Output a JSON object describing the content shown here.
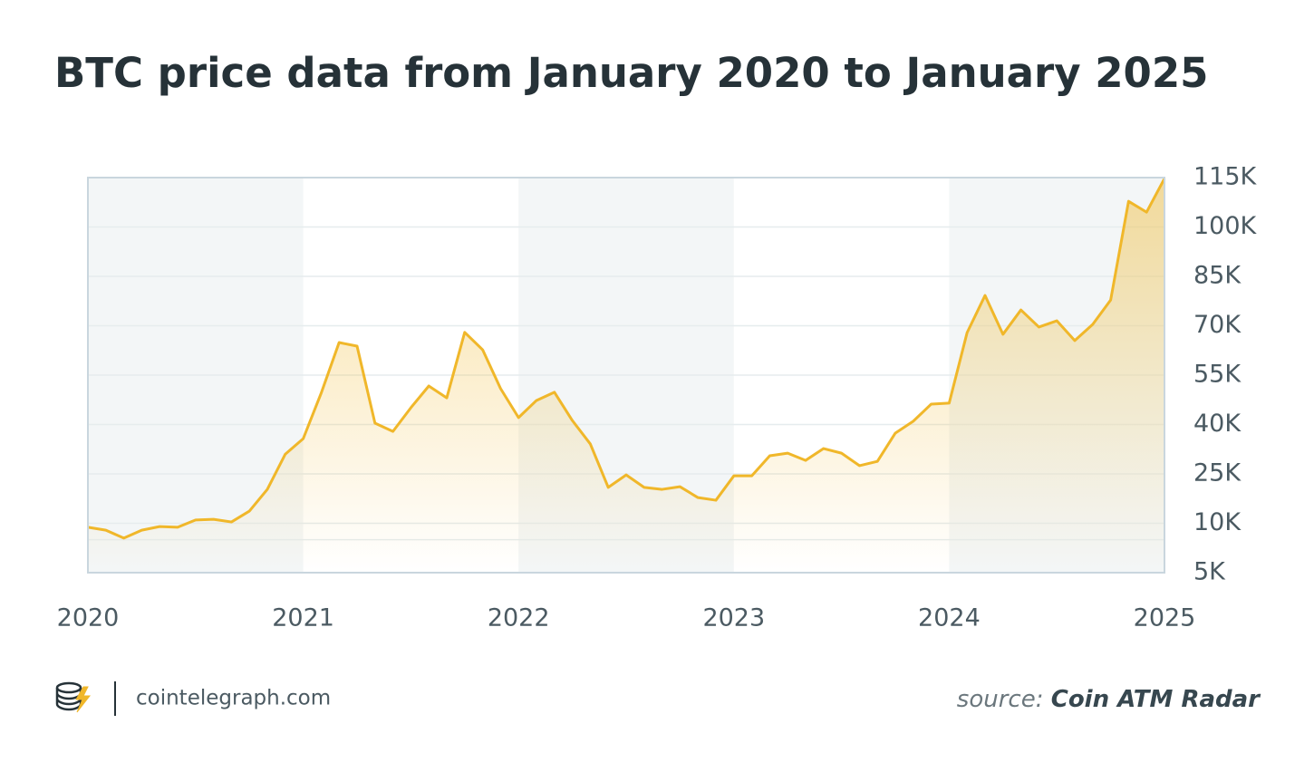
{
  "chart_data": {
    "type": "area",
    "title": "BTC price data from January 2020 to January 2025",
    "x": [
      2020,
      2020.0833,
      2020.1667,
      2020.25,
      2020.3333,
      2020.4167,
      2020.5,
      2020.5833,
      2020.6667,
      2020.75,
      2020.8333,
      2020.9167,
      2021,
      2021.0833,
      2021.1667,
      2021.25,
      2021.3333,
      2021.4167,
      2021.5,
      2021.5833,
      2021.6667,
      2021.75,
      2021.8333,
      2021.9167,
      2022,
      2022.0833,
      2022.1667,
      2022.25,
      2022.3333,
      2022.4167,
      2022.5,
      2022.5833,
      2022.6667,
      2022.75,
      2022.8333,
      2022.9167,
      2023,
      2023.0833,
      2023.1667,
      2023.25,
      2023.3333,
      2023.4167,
      2023.5,
      2023.5833,
      2023.6667,
      2023.75,
      2023.8333,
      2023.9167,
      2024,
      2024.0833,
      2024.1667,
      2024.25,
      2024.3333,
      2024.4167,
      2024.5,
      2024.5833,
      2024.6667,
      2024.75,
      2024.8333,
      2024.9167,
      2025
    ],
    "series": [
      {
        "name": "BTC price",
        "color": "#f0b72a",
        "values": [
          8800,
          7900,
          5500,
          7900,
          9000,
          8800,
          11000,
          11200,
          10400,
          13700,
          20300,
          31000,
          35700,
          49500,
          64900,
          63800,
          40400,
          37900,
          45100,
          51700,
          48100,
          68000,
          62700,
          50900,
          42100,
          47300,
          49800,
          41200,
          34100,
          20900,
          24700,
          20900,
          20300,
          21100,
          17800,
          17000,
          24400,
          24400,
          30500,
          31300,
          29100,
          32700,
          31300,
          27500,
          28800,
          37400,
          41000,
          46200,
          46500,
          67900,
          79200,
          67400,
          74800,
          69600,
          71500,
          65500,
          70400,
          77800,
          107800,
          104500,
          114700
        ]
      }
    ],
    "xlim": [
      2020,
      2025
    ],
    "xticks": [
      2020,
      2021,
      2022,
      2023,
      2024,
      2025
    ],
    "ylim": [
      -5000,
      115000
    ],
    "yticks": [
      {
        "value": 5000,
        "label": "5K"
      },
      {
        "value": 10000,
        "label": "10K"
      },
      {
        "value": 25000,
        "label": "25K"
      },
      {
        "value": 40000,
        "label": "40K"
      },
      {
        "value": 55000,
        "label": "55K"
      },
      {
        "value": 70000,
        "label": "70K"
      },
      {
        "value": 85000,
        "label": "85K"
      },
      {
        "value": 100000,
        "label": "100K"
      },
      {
        "value": 115000,
        "label": "115K"
      }
    ],
    "grid": true
  },
  "footer": {
    "site": "cointelegraph.com",
    "source_label": "source:",
    "source": "Coin ATM Radar"
  }
}
